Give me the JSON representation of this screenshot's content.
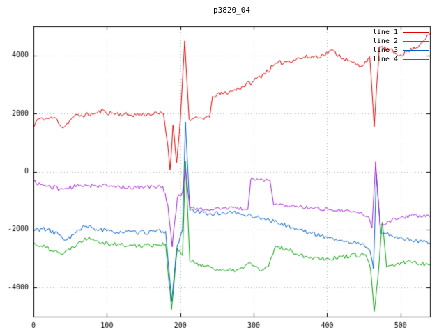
{
  "chart_data": {
    "type": "line",
    "title": "p3820_04",
    "xlabel": "",
    "ylabel": "",
    "xlim": [
      0,
      540
    ],
    "ylim": [
      -5000,
      5000
    ],
    "x_ticks": [
      0,
      100,
      200,
      300,
      400,
      500
    ],
    "y_ticks": [
      -4000,
      -2000,
      0,
      2000,
      4000
    ],
    "grid": true,
    "legend_position": "top-right",
    "series": [
      {
        "name": "line 1",
        "color": "#e00000",
        "seed": 11,
        "segments": [
          [
            0,
            5,
            1500,
            1800,
            60
          ],
          [
            5,
            30,
            1800,
            1850,
            70
          ],
          [
            30,
            40,
            1850,
            1500,
            70
          ],
          [
            40,
            55,
            1500,
            1900,
            70
          ],
          [
            55,
            85,
            1900,
            2000,
            80
          ],
          [
            85,
            95,
            2000,
            2120,
            80
          ],
          [
            95,
            130,
            2050,
            1950,
            80
          ],
          [
            130,
            177,
            1950,
            2000,
            80
          ],
          [
            177,
            183,
            2000,
            900,
            80
          ],
          [
            183,
            186,
            900,
            50,
            60
          ],
          [
            186,
            190,
            50,
            1600,
            80
          ],
          [
            190,
            195,
            1600,
            300,
            80
          ],
          [
            195,
            200,
            300,
            1800,
            80
          ],
          [
            200,
            206,
            1800,
            4500,
            30
          ],
          [
            206,
            212,
            4500,
            1800,
            30
          ],
          [
            212,
            240,
            1800,
            1870,
            70
          ],
          [
            240,
            244,
            1870,
            2600,
            40
          ],
          [
            244,
            272,
            2600,
            2780,
            80
          ],
          [
            272,
            300,
            2780,
            3120,
            90
          ],
          [
            300,
            332,
            3120,
            3720,
            90
          ],
          [
            332,
            362,
            3720,
            3900,
            90
          ],
          [
            362,
            395,
            3900,
            4000,
            90
          ],
          [
            395,
            405,
            4000,
            4180,
            70
          ],
          [
            405,
            428,
            4180,
            3820,
            80
          ],
          [
            428,
            446,
            3820,
            3620,
            80
          ],
          [
            446,
            458,
            3620,
            3950,
            70
          ],
          [
            458,
            464,
            3950,
            1550,
            60
          ],
          [
            464,
            471,
            1550,
            4300,
            80
          ],
          [
            471,
            500,
            4300,
            4020,
            90
          ],
          [
            500,
            522,
            4020,
            4280,
            80
          ],
          [
            522,
            540,
            4280,
            4750,
            60
          ]
        ]
      },
      {
        "name": "line 2",
        "color": "#00a000",
        "seed": 22,
        "segments": [
          [
            0,
            10,
            -2480,
            -2560,
            70
          ],
          [
            10,
            30,
            -2560,
            -2720,
            80
          ],
          [
            30,
            40,
            -2720,
            -2850,
            70
          ],
          [
            40,
            60,
            -2850,
            -2470,
            80
          ],
          [
            60,
            76,
            -2470,
            -2260,
            80
          ],
          [
            76,
            95,
            -2260,
            -2450,
            80
          ],
          [
            95,
            130,
            -2450,
            -2560,
            80
          ],
          [
            130,
            180,
            -2560,
            -2500,
            80
          ],
          [
            180,
            188,
            -2500,
            -4750,
            90
          ],
          [
            188,
            196,
            -4750,
            -2650,
            120
          ],
          [
            196,
            203,
            -2650,
            -2900,
            90
          ],
          [
            203,
            207,
            -2900,
            350,
            20
          ],
          [
            207,
            213,
            350,
            -3100,
            20
          ],
          [
            213,
            242,
            -3100,
            -3300,
            80
          ],
          [
            242,
            262,
            -3300,
            -3440,
            80
          ],
          [
            262,
            286,
            -3440,
            -3340,
            80
          ],
          [
            286,
            294,
            -3340,
            -3120,
            70
          ],
          [
            294,
            310,
            -3120,
            -3430,
            80
          ],
          [
            310,
            320,
            -3430,
            -3280,
            70
          ],
          [
            320,
            330,
            -3280,
            -2560,
            60
          ],
          [
            330,
            346,
            -2560,
            -2700,
            70
          ],
          [
            346,
            372,
            -2700,
            -2940,
            80
          ],
          [
            372,
            402,
            -2940,
            -3000,
            80
          ],
          [
            402,
            432,
            -3000,
            -2900,
            80
          ],
          [
            432,
            452,
            -2900,
            -2860,
            80
          ],
          [
            452,
            459,
            -2860,
            -3350,
            70
          ],
          [
            459,
            464,
            -3350,
            -4820,
            80
          ],
          [
            464,
            469,
            -4820,
            -3700,
            80
          ],
          [
            469,
            475,
            -3700,
            -1750,
            60
          ],
          [
            475,
            481,
            -1750,
            -3300,
            80
          ],
          [
            481,
            510,
            -3300,
            -3100,
            80
          ],
          [
            510,
            540,
            -3100,
            -3200,
            80
          ]
        ]
      },
      {
        "name": "line 3",
        "color": "#0060c8",
        "seed": 33,
        "segments": [
          [
            0,
            10,
            -2050,
            -1950,
            100
          ],
          [
            10,
            34,
            -1950,
            -2180,
            110
          ],
          [
            34,
            46,
            -2180,
            -2350,
            90
          ],
          [
            46,
            70,
            -2350,
            -1900,
            110
          ],
          [
            70,
            100,
            -1900,
            -2060,
            90
          ],
          [
            100,
            140,
            -2060,
            -2110,
            80
          ],
          [
            140,
            180,
            -2110,
            -2060,
            80
          ],
          [
            180,
            188,
            -2060,
            -4480,
            90
          ],
          [
            188,
            196,
            -4480,
            -2520,
            120
          ],
          [
            196,
            203,
            -2520,
            -2000,
            90
          ],
          [
            203,
            207,
            -2000,
            1700,
            20
          ],
          [
            207,
            213,
            1700,
            -1350,
            20
          ],
          [
            213,
            242,
            -1350,
            -1460,
            70
          ],
          [
            242,
            272,
            -1460,
            -1410,
            70
          ],
          [
            272,
            292,
            -1410,
            -1510,
            70
          ],
          [
            292,
            312,
            -1510,
            -1610,
            70
          ],
          [
            312,
            332,
            -1610,
            -1760,
            70
          ],
          [
            332,
            362,
            -1760,
            -2010,
            70
          ],
          [
            362,
            392,
            -2010,
            -2210,
            70
          ],
          [
            392,
            422,
            -2210,
            -2410,
            70
          ],
          [
            422,
            450,
            -2410,
            -2510,
            70
          ],
          [
            450,
            458,
            -2510,
            -2700,
            70
          ],
          [
            458,
            463,
            -2700,
            -3350,
            60
          ],
          [
            463,
            467,
            -3350,
            -80,
            20
          ],
          [
            467,
            473,
            -80,
            -2120,
            70
          ],
          [
            473,
            502,
            -2120,
            -2300,
            80
          ],
          [
            502,
            540,
            -2300,
            -2460,
            80
          ]
        ]
      },
      {
        "name": "line 4",
        "color": "#a020d0",
        "seed": 44,
        "segments": [
          [
            0,
            10,
            -330,
            -460,
            80
          ],
          [
            10,
            40,
            -460,
            -610,
            80
          ],
          [
            40,
            70,
            -610,
            -460,
            80
          ],
          [
            70,
            102,
            -460,
            -510,
            80
          ],
          [
            102,
            140,
            -510,
            -560,
            70
          ],
          [
            140,
            176,
            -560,
            -500,
            70
          ],
          [
            176,
            183,
            -500,
            -1150,
            80
          ],
          [
            183,
            189,
            -1150,
            -2600,
            90
          ],
          [
            189,
            196,
            -2600,
            -900,
            110
          ],
          [
            196,
            203,
            -900,
            -700,
            90
          ],
          [
            203,
            207,
            -700,
            80,
            20
          ],
          [
            207,
            213,
            80,
            -1260,
            20
          ],
          [
            213,
            242,
            -1260,
            -1310,
            60
          ],
          [
            242,
            272,
            -1310,
            -1250,
            60
          ],
          [
            272,
            292,
            -1250,
            -1310,
            60
          ],
          [
            292,
            296,
            -1310,
            -260,
            30
          ],
          [
            296,
            322,
            -260,
            -300,
            60
          ],
          [
            322,
            327,
            -300,
            -1140,
            30
          ],
          [
            327,
            362,
            -1140,
            -1210,
            60
          ],
          [
            362,
            402,
            -1210,
            -1310,
            60
          ],
          [
            402,
            442,
            -1310,
            -1410,
            60
          ],
          [
            442,
            456,
            -1410,
            -1560,
            60
          ],
          [
            456,
            461,
            -1560,
            -1950,
            60
          ],
          [
            461,
            466,
            -1950,
            330,
            20
          ],
          [
            466,
            472,
            330,
            -1870,
            60
          ],
          [
            472,
            492,
            -1870,
            -1620,
            70
          ],
          [
            492,
            522,
            -1620,
            -1510,
            70
          ],
          [
            522,
            540,
            -1510,
            -1560,
            70
          ]
        ]
      }
    ]
  }
}
